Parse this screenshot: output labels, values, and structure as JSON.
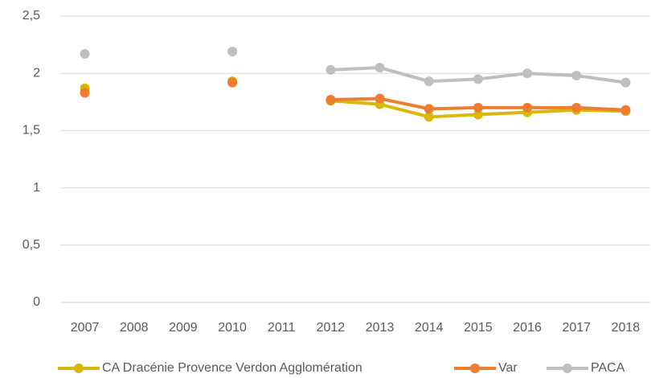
{
  "chart_data": {
    "type": "line",
    "categories": [
      "2007",
      "2008",
      "2009",
      "2010",
      "2011",
      "2012",
      "2013",
      "2014",
      "2015",
      "2016",
      "2017",
      "2018"
    ],
    "series": [
      {
        "name": "CA Dracénie Provence Verdon Agglomération",
        "color": "#d9b80b",
        "values": [
          1.87,
          null,
          null,
          1.93,
          null,
          1.76,
          1.73,
          1.62,
          1.64,
          1.66,
          1.68,
          1.67
        ]
      },
      {
        "name": "Var",
        "color": "#ed7d31",
        "values": [
          1.83,
          null,
          null,
          1.92,
          null,
          1.77,
          1.78,
          1.69,
          1.7,
          1.7,
          1.7,
          1.68
        ]
      },
      {
        "name": "PACA",
        "color": "#bfbfbf",
        "values": [
          2.17,
          null,
          null,
          2.19,
          null,
          2.03,
          2.05,
          1.93,
          1.95,
          2.0,
          1.98,
          1.92
        ]
      }
    ],
    "ylim": [
      0,
      2.5
    ],
    "yticks": [
      0,
      {
        "value": 0.5,
        "label": "0,5"
      },
      1,
      {
        "value": 1.5,
        "label": "1,5"
      },
      2,
      {
        "value": 2.5,
        "label": "2,5"
      }
    ],
    "grid": true,
    "legend": "bottom"
  }
}
